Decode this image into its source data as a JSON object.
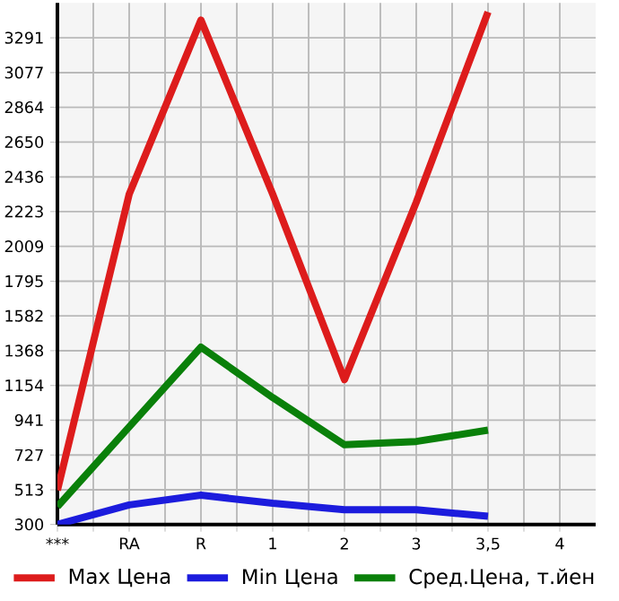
{
  "chart_data": {
    "type": "line",
    "categories": [
      "***",
      "RA",
      "R",
      "1",
      "2",
      "3",
      "3,5",
      "4"
    ],
    "series": [
      {
        "name": "Max Цена",
        "color": "#dd1c1c",
        "values": [
          510,
          2330,
          3400,
          2330,
          1190,
          2280,
          3450,
          null
        ]
      },
      {
        "name": "Min Цена",
        "color": "#1c1cdd",
        "values": [
          300,
          420,
          480,
          430,
          390,
          390,
          350,
          null
        ]
      },
      {
        "name": "Сред.Цена, т.йен",
        "color": "#0a800a",
        "values": [
          410,
          900,
          1390,
          1080,
          790,
          810,
          880,
          null
        ]
      }
    ],
    "ylim": [
      300,
      3505
    ],
    "yticks": [
      300,
      513,
      727,
      941,
      1154,
      1368,
      1582,
      1795,
      2009,
      2223,
      2436,
      2650,
      2864,
      3077,
      3291
    ],
    "grid": true,
    "legend": "bottom",
    "marker": "none",
    "line_style": "solid"
  }
}
